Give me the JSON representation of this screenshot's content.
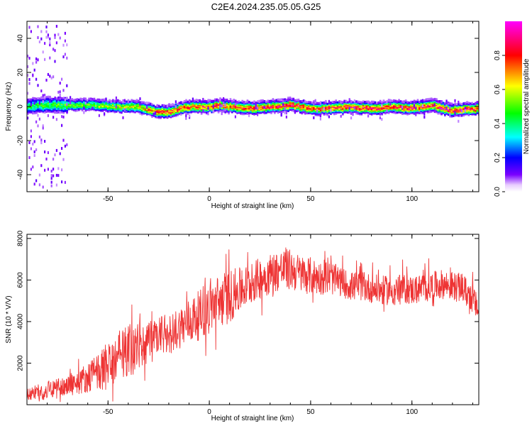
{
  "title": "C2E4.2024.235.05.05.G25",
  "colors": {
    "snr_line": "#ee3333",
    "frame": "#000000"
  },
  "chart_data": [
    {
      "type": "heatmap",
      "xlabel": "Height of straight line (km)",
      "ylabel": "Frequency (Hz)",
      "xlim": [
        -90,
        133
      ],
      "ylim": [
        -50,
        50
      ],
      "x_ticks": [
        -50,
        0,
        50,
        100
      ],
      "y_ticks": [
        -40,
        -20,
        0,
        20,
        40
      ],
      "colorbar": {
        "label": "Normalized spectral amplitude",
        "range": [
          0.0,
          1.0
        ],
        "ticks": [
          0.0,
          0.2,
          0.4,
          0.6,
          0.8
        ],
        "colormap": [
          "#ffffff",
          "#7a00ff",
          "#0000ff",
          "#00ffff",
          "#00ff00",
          "#ffff00",
          "#ff0000",
          "#ff00ff"
        ]
      },
      "ridge": {
        "description_points_x": [
          -90,
          -80,
          -60,
          -45,
          -35,
          -30,
          -25,
          -20,
          -15,
          -10,
          0,
          5,
          10,
          20,
          30,
          40,
          45,
          50,
          60,
          70,
          80,
          90,
          100,
          110,
          115,
          120,
          133
        ],
        "frequency_hz": [
          0,
          1,
          1,
          0,
          0,
          -2,
          -3,
          -3,
          -1,
          0,
          0,
          1,
          0,
          -1,
          0,
          1,
          0,
          -1,
          -1,
          0,
          -1,
          0,
          -1,
          1,
          -1,
          -2,
          -1
        ],
        "amplitude": [
          0.45,
          0.5,
          0.55,
          0.6,
          0.65,
          0.75,
          0.85,
          0.85,
          0.8,
          0.8,
          0.85,
          0.85,
          0.8,
          0.85,
          0.85,
          0.9,
          0.85,
          0.8,
          0.85,
          0.85,
          0.9,
          0.85,
          0.9,
          0.85,
          0.9,
          0.9,
          0.85
        ]
      }
    },
    {
      "type": "line",
      "xlabel": "Height of straight line (km)",
      "ylabel": "SNR (10 * V/V)",
      "xlim": [
        -90,
        133
      ],
      "ylim": [
        0,
        8200
      ],
      "x_ticks": [
        -50,
        0,
        50,
        100
      ],
      "y_ticks": [
        2000,
        4000,
        6000,
        8000
      ],
      "series": [
        {
          "x": [
            -90,
            -80,
            -70,
            -60,
            -55,
            -50,
            -45,
            -40,
            -35,
            -30,
            -25,
            -20,
            -15,
            -10,
            -5,
            0,
            5,
            10,
            15,
            20,
            25,
            30,
            35,
            40,
            45,
            50,
            55,
            60,
            65,
            70,
            75,
            80,
            85,
            90,
            95,
            100,
            105,
            110,
            115,
            120,
            125,
            130,
            133
          ],
          "y": [
            500,
            700,
            900,
            1300,
            1600,
            1800,
            2200,
            2600,
            2800,
            3000,
            3200,
            3400,
            3700,
            4000,
            4300,
            4700,
            5000,
            5200,
            5500,
            5800,
            6100,
            6300,
            6500,
            6500,
            6300,
            6200,
            6100,
            6100,
            5900,
            5700,
            5700,
            5600,
            5500,
            5500,
            5600,
            5500,
            5600,
            5700,
            5800,
            5700,
            5600,
            5100,
            4500
          ],
          "noise_amplitude": [
            300,
            400,
            500,
            700,
            900,
            1100,
            1200,
            1300,
            1200,
            1100,
            1000,
            1000,
            1000,
            1100,
            1200,
            1200,
            1300,
            1300,
            1100,
            1000,
            1000,
            1000,
            1000,
            1000,
            900,
            900,
            800,
            800,
            700,
            700,
            700,
            700,
            700,
            700,
            700,
            700,
            700,
            700,
            700,
            700,
            700,
            700,
            600
          ]
        }
      ]
    }
  ]
}
